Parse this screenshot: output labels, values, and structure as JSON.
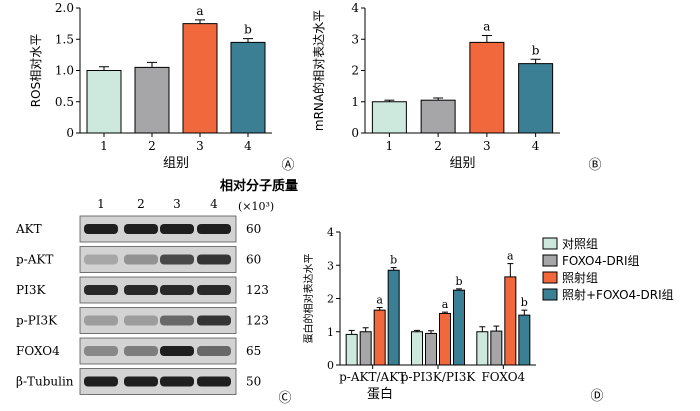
{
  "colors": {
    "group1": "#cde9dd",
    "group2": "#a6a6a8",
    "group3": "#f0683b",
    "group4": "#3a7f93",
    "axis": "#000000"
  },
  "chart_data": [
    {
      "panel": "A",
      "panel_label": "Ⓐ",
      "type": "bar",
      "categories": [
        "1",
        "2",
        "3",
        "4"
      ],
      "values": [
        1.0,
        1.05,
        1.75,
        1.45
      ],
      "errors": [
        0.06,
        0.08,
        0.06,
        0.06
      ],
      "sig": [
        "",
        "",
        "a",
        "b"
      ],
      "xlabel": "组别",
      "ylabel": "ROS相对水平",
      "ylim": [
        0,
        2.0
      ],
      "yticks": [
        "0",
        "0.5",
        "1.0",
        "1.5",
        "2.0"
      ],
      "grid": false
    },
    {
      "panel": "B",
      "panel_label": "Ⓑ",
      "type": "bar",
      "categories": [
        "1",
        "2",
        "3",
        "4"
      ],
      "values": [
        1.0,
        1.05,
        2.9,
        2.22
      ],
      "errors": [
        0.05,
        0.07,
        0.22,
        0.14
      ],
      "sig": [
        "",
        "",
        "a",
        "b"
      ],
      "xlabel": "组别",
      "ylabel": "mRNA的相对表达水平",
      "ylim": [
        0,
        4
      ],
      "yticks": [
        "0",
        "1",
        "2",
        "3",
        "4"
      ],
      "grid": false
    },
    {
      "panel": "D",
      "panel_label": "Ⓓ",
      "type": "bar",
      "categories": [
        "p-AKT/AKT",
        "p-PI3K/PI3K",
        "FOXO4"
      ],
      "series": [
        {
          "name": "对照组",
          "values": [
            0.92,
            1.0,
            1.0
          ],
          "errors": [
            0.12,
            0.04,
            0.15
          ],
          "sig": [
            "",
            "",
            ""
          ]
        },
        {
          "name": "FOXO4-DRI组",
          "values": [
            1.0,
            0.95,
            1.02
          ],
          "errors": [
            0.12,
            0.08,
            0.15
          ],
          "sig": [
            "",
            "",
            ""
          ]
        },
        {
          "name": "照射组",
          "values": [
            1.65,
            1.55,
            2.65
          ],
          "errors": [
            0.08,
            0.04,
            0.4
          ],
          "sig": [
            "a",
            "a",
            "a"
          ]
        },
        {
          "name": "照射+FOXO4-DRI组",
          "values": [
            2.85,
            2.25,
            1.5
          ],
          "errors": [
            0.08,
            0.04,
            0.15
          ],
          "sig": [
            "b",
            "b",
            "b"
          ]
        }
      ],
      "xlabel": "蛋白",
      "ylabel": "蛋白的相对表达水平",
      "ylim": [
        0,
        4
      ],
      "yticks": [
        "0",
        "1",
        "2",
        "3",
        "4"
      ],
      "legend": "right",
      "grid": false
    }
  ],
  "blot": {
    "panel_label": "Ⓒ",
    "lanes": [
      "1",
      "2",
      "3",
      "4"
    ],
    "header": "相对分子质量",
    "unit": "(×10³)",
    "rows": [
      {
        "name": "AKT",
        "mw": "60",
        "intensity": [
          0.95,
          0.95,
          0.95,
          0.95
        ]
      },
      {
        "name": "p-AKT",
        "mw": "60",
        "intensity": [
          0.3,
          0.4,
          0.75,
          0.85
        ]
      },
      {
        "name": "PI3K",
        "mw": "123",
        "intensity": [
          0.9,
          0.9,
          0.9,
          0.9
        ]
      },
      {
        "name": "p-PI3K",
        "mw": "123",
        "intensity": [
          0.35,
          0.35,
          0.6,
          0.85
        ]
      },
      {
        "name": "FOXO4",
        "mw": "65",
        "intensity": [
          0.45,
          0.5,
          0.95,
          0.6
        ]
      },
      {
        "name": "β-Tubulin",
        "mw": "50",
        "intensity": [
          0.95,
          0.95,
          0.95,
          0.95
        ]
      }
    ]
  }
}
